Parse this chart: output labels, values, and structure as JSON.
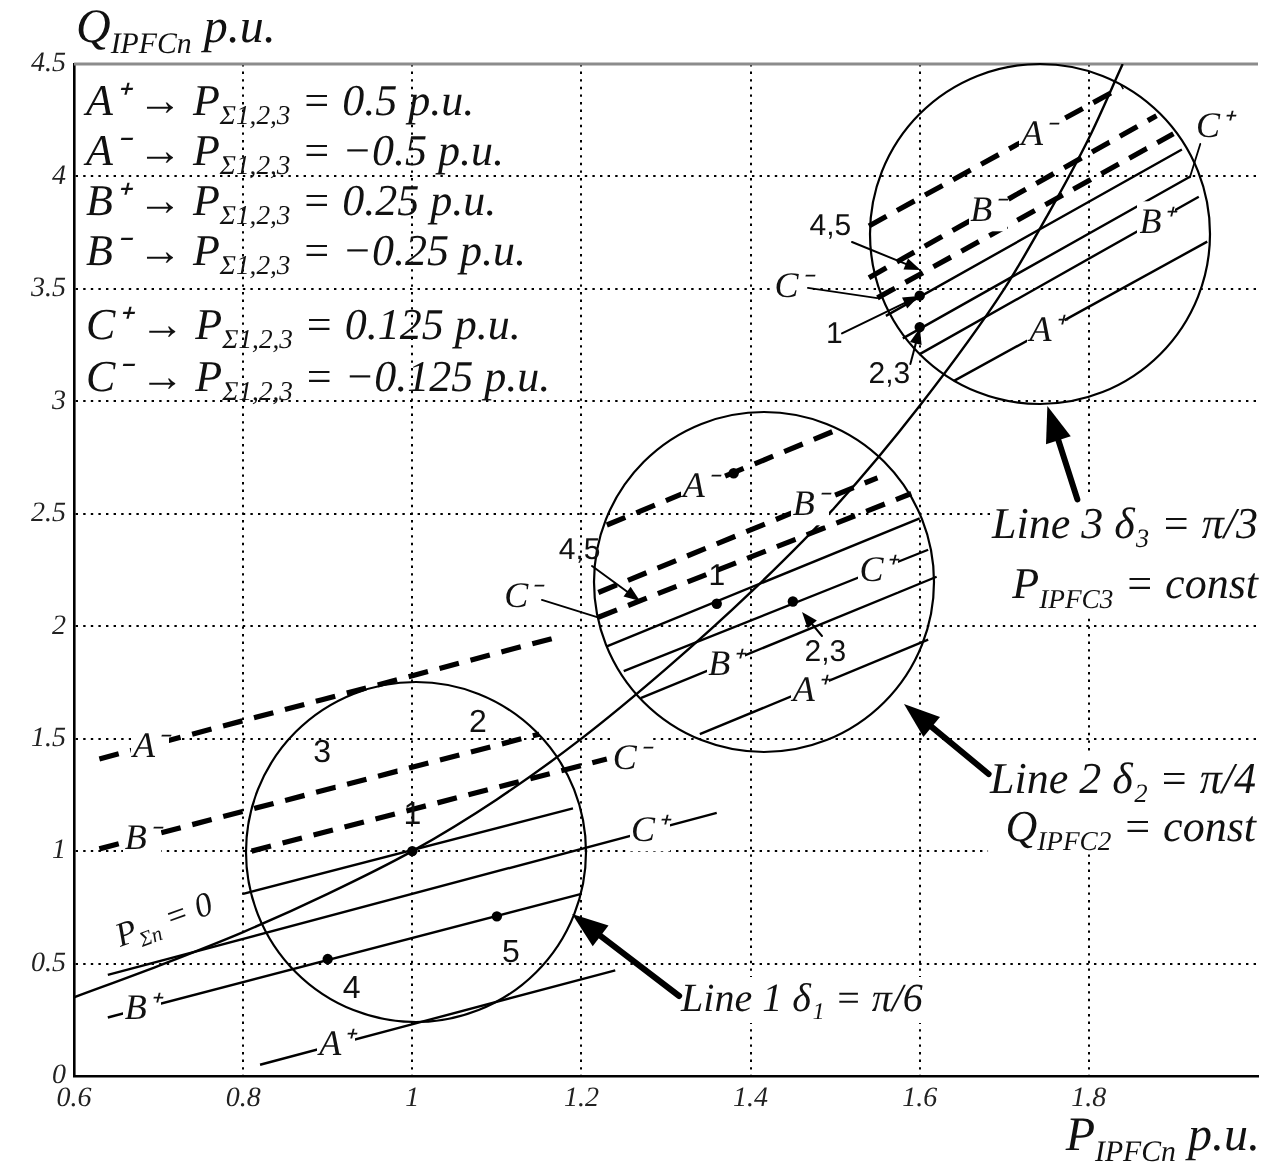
{
  "chart_data": {
    "type": "line",
    "xlabel": "P$_{IPFCn}$ p.u.",
    "ylabel": "Q$_{IPFCn}$ p.u.",
    "xlim": [
      0.6,
      2.0
    ],
    "ylim": [
      0,
      4.5
    ],
    "xticks": [
      0.6,
      0.8,
      1,
      1.2,
      1.4,
      1.6,
      1.8
    ],
    "yticks": [
      0,
      0.5,
      1,
      1.5,
      2,
      2.5,
      3,
      3.5,
      4,
      4.5
    ],
    "grid": true,
    "marker": "none",
    "line_style": "solid",
    "series": [
      {
        "color": "#000000",
        "x": [
          0.6,
          0.7,
          0.8,
          0.9,
          1.0,
          1.1,
          1.2,
          1.3,
          1.4,
          1.5,
          1.6,
          1.7,
          1.75,
          1.8,
          1.84
        ],
        "values": [
          0.35,
          0.49,
          0.64,
          0.81,
          1.0,
          1.23,
          1.5,
          1.81,
          2.15,
          2.53,
          2.98,
          3.5,
          3.82,
          4.17,
          4.5
        ]
      },
      {
        "color": "#000000",
        "line_style": "dashed",
        "x": [
          0.63,
          1.17
        ],
        "values": [
          1.41,
          1.95
        ]
      },
      {
        "color": "#000000",
        "line_style": "dashed",
        "x": [
          0.63,
          1.15
        ],
        "values": [
          1.01,
          1.52
        ]
      },
      {
        "color": "#000000",
        "line_style": "dashed",
        "x": [
          0.81,
          1.23
        ],
        "values": [
          1.0,
          1.41
        ]
      },
      {
        "color": "#000000",
        "x": [
          0.8,
          1.19
        ],
        "values": [
          0.81,
          1.19
        ]
      },
      {
        "color": "#000000",
        "x": [
          0.64,
          1.36
        ],
        "values": [
          0.45,
          1.17
        ]
      },
      {
        "color": "#000000",
        "x": [
          0.64,
          1.2
        ],
        "values": [
          0.26,
          0.81
        ]
      },
      {
        "color": "#000000",
        "x": [
          0.82,
          1.24
        ],
        "values": [
          0.05,
          0.47
        ]
      },
      {
        "color": "#000000",
        "line_style": "dashed",
        "x": [
          1.23,
          1.5
        ],
        "values": [
          2.45,
          2.87
        ]
      },
      {
        "color": "#000000",
        "line_style": "dashed",
        "x": [
          1.22,
          1.55
        ],
        "values": [
          2.15,
          2.66
        ]
      },
      {
        "color": "#000000",
        "line_style": "dashed",
        "x": [
          1.22,
          1.59
        ],
        "values": [
          2.04,
          2.59
        ]
      },
      {
        "color": "#000000",
        "x": [
          1.23,
          1.6
        ],
        "values": [
          1.91,
          2.48
        ]
      },
      {
        "color": "#000000",
        "x": [
          1.25,
          1.61
        ],
        "values": [
          1.8,
          2.34
        ]
      },
      {
        "color": "#000000",
        "x": [
          1.27,
          1.62
        ],
        "values": [
          1.68,
          2.22
        ]
      },
      {
        "color": "#000000",
        "x": [
          1.34,
          1.61
        ],
        "values": [
          1.52,
          1.94
        ]
      },
      {
        "color": "#000000",
        "line_style": "dashed",
        "x": [
          1.54,
          1.84
        ],
        "values": [
          3.78,
          4.4
        ]
      },
      {
        "color": "#000000",
        "line_style": "dashed",
        "x": [
          1.54,
          1.88
        ],
        "values": [
          3.55,
          4.27
        ]
      },
      {
        "color": "#000000",
        "line_style": "dashed",
        "x": [
          1.55,
          1.9
        ],
        "values": [
          3.46,
          4.19
        ]
      },
      {
        "color": "#000000",
        "x": [
          1.56,
          1.91
        ],
        "values": [
          3.38,
          4.12
        ]
      },
      {
        "color": "#000000",
        "x": [
          1.58,
          1.92
        ],
        "values": [
          3.28,
          4.0
        ]
      },
      {
        "color": "#000000",
        "x": [
          1.6,
          1.93
        ],
        "values": [
          3.21,
          3.91
        ]
      },
      {
        "color": "#000000",
        "x": [
          1.64,
          1.94
        ],
        "values": [
          3.09,
          3.71
        ]
      },
      {
        "type": "scatter",
        "color": "#000000",
        "marker": "circle",
        "x": [
          1.0,
          0.9,
          1.1,
          1.36,
          1.45,
          1.38,
          1.6,
          1.6
        ],
        "values": [
          1.0,
          0.52,
          0.71,
          2.1,
          2.11,
          2.68,
          3.47,
          3.33
        ]
      }
    ],
    "annotations": [
      "A⁺ → P$_{Σ1,2,3}$ = 0.5 p.u.",
      "A⁻ → P$_{Σ1,2,3}$ = −0.5 p.u.",
      "B⁺ → P$_{Σ1,2,3}$ = 0.25 p.u.",
      "B⁻ → P$_{Σ1,2,3}$ = −0.25 p.u.",
      "C⁺ → P$_{Σ1,2,3}$ = 0.125 p.u.",
      "C⁻ → P$_{Σ1,2,3}$ = −0.125 p.u.",
      {
        "text": "P$_{Σn}$ = 0",
        "x": 0.8,
        "y": 0.81
      },
      {
        "text": "A⁻",
        "x": 0.69,
        "y": 1.47
      },
      {
        "text": "B⁻",
        "x": 0.68,
        "y": 1.06
      },
      {
        "text": "C⁻",
        "x": 1.23,
        "y": 1.41
      },
      {
        "text": "C⁺",
        "x": 1.28,
        "y": 1.09
      },
      {
        "text": "B⁺",
        "x": 0.68,
        "y": 0.3
      },
      {
        "text": "A⁺",
        "x": 0.91,
        "y": 0.14
      },
      {
        "text": "1",
        "x": 1.0,
        "y": 1.16
      },
      {
        "text": "2",
        "x": 1.08,
        "y": 1.45
      },
      {
        "text": "3",
        "x": 0.89,
        "y": 1.27
      },
      {
        "text": "4",
        "x": 0.9,
        "y": 0.52
      },
      {
        "text": "5",
        "x": 1.1,
        "y": 0.71
      },
      {
        "text": "A⁻",
        "x": 1.34,
        "y": 2.62
      },
      {
        "text": "B⁻",
        "x": 1.47,
        "y": 2.54
      },
      {
        "text": "C⁻",
        "x": 1.22,
        "y": 2.04
      },
      {
        "text": "C⁺",
        "x": 1.55,
        "y": 2.25
      },
      {
        "text": "B⁺",
        "x": 1.37,
        "y": 1.83
      },
      {
        "text": "A⁺",
        "x": 1.47,
        "y": 1.72
      },
      {
        "text": "4,5",
        "x": 1.27,
        "y": 2.11
      },
      {
        "text": "1",
        "x": 1.36,
        "y": 2.22
      },
      {
        "text": "2,3",
        "x": 1.46,
        "y": 2.06
      },
      {
        "text": "A⁻",
        "x": 1.74,
        "y": 4.19
      },
      {
        "text": "B⁻",
        "x": 1.68,
        "y": 3.85
      },
      {
        "text": "C⁻",
        "x": 1.55,
        "y": 3.46
      },
      {
        "text": "C⁺",
        "x": 1.92,
        "y": 4.0
      },
      {
        "text": "B⁺",
        "x": 1.88,
        "y": 3.8
      },
      {
        "text": "A⁺",
        "x": 1.75,
        "y": 3.32
      },
      {
        "text": "4,5",
        "x": 1.6,
        "y": 3.58
      },
      {
        "text": "1",
        "x": 1.6,
        "y": 3.47
      },
      {
        "text": "2,3",
        "x": 1.6,
        "y": 3.33
      },
      "Line 1 δ₁ = π/6",
      "Line 2 δ₂ = π/4\nQ$_{IPFC2}$ = const",
      "Line 3 δ₃ = π/3\nP$_{IPFC3}$ = const"
    ]
  }
}
